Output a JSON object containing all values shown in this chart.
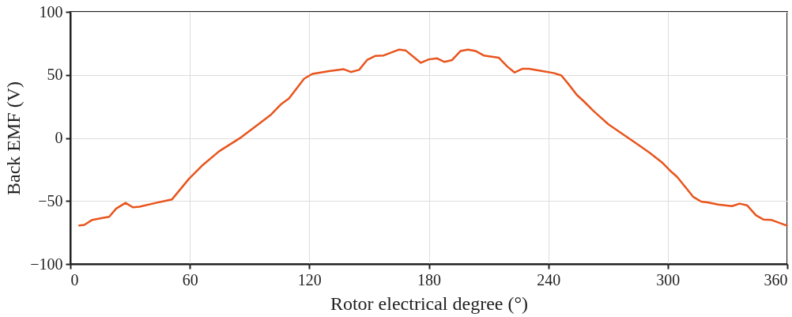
{
  "chart_data": {
    "type": "line",
    "xlabel": "Rotor electrical degree (°)",
    "ylabel": "Back EMF (V)",
    "x": [
      4.5,
      7,
      11,
      16,
      19.5,
      23,
      27.7,
      31.4,
      34.7,
      43,
      51,
      59.5,
      66.4,
      74.7,
      85.7,
      94,
      100.8,
      106,
      109.8,
      117.4,
      121.5,
      129.8,
      137.3,
      141,
      145,
      149,
      153,
      157.3,
      164.9,
      168.3,
      176,
      180,
      184.2,
      187.9,
      191.7,
      195.9,
      199.7,
      203.4,
      207.6,
      215.2,
      219.3,
      223.1,
      226.9,
      230.3,
      237.2,
      242.7,
      246.6,
      250.3,
      254.4,
      257.9,
      262.7,
      270.2,
      275.1,
      285.4,
      290.9,
      297.1,
      301.2,
      304.7,
      312.7,
      316.8,
      320.5,
      325.3,
      332.2,
      336.1,
      339.8,
      344.3,
      348,
      352.2,
      359.8
    ],
    "series": [
      {
        "color": "#e8541c",
        "values": [
          -69.5,
          -69,
          -65,
          -63.5,
          -62.5,
          -56,
          -51.5,
          -55,
          -54.5,
          -51.5,
          -48.8,
          -32.5,
          -21.6,
          -10.6,
          0.4,
          10.4,
          18.5,
          27,
          31.3,
          47,
          50.8,
          53,
          54.5,
          52.3,
          54,
          61.8,
          65,
          65.4,
          70,
          69.5,
          59.6,
          62.3,
          63.1,
          60.3,
          61.8,
          68.9,
          70,
          69,
          65.4,
          63.6,
          56.8,
          51.9,
          54.8,
          54.8,
          53,
          51.5,
          49.5,
          42.4,
          34,
          29,
          21.4,
          10.8,
          5.5,
          -5.7,
          -11.7,
          -19.4,
          -26,
          -30.9,
          -46.6,
          -50.5,
          -51.2,
          -52.8,
          -54.1,
          -52.1,
          -53.4,
          -61.4,
          -64.7,
          -65.1,
          -69.5
        ]
      }
    ],
    "xlim": [
      0,
      360
    ],
    "xticks": [
      0,
      60,
      120,
      180,
      240,
      300,
      360
    ],
    "ylim": [
      -100,
      100
    ],
    "yticks": [
      -100,
      -50,
      0,
      50,
      100
    ],
    "grid": true,
    "marker": "none",
    "line_style": "solid"
  }
}
